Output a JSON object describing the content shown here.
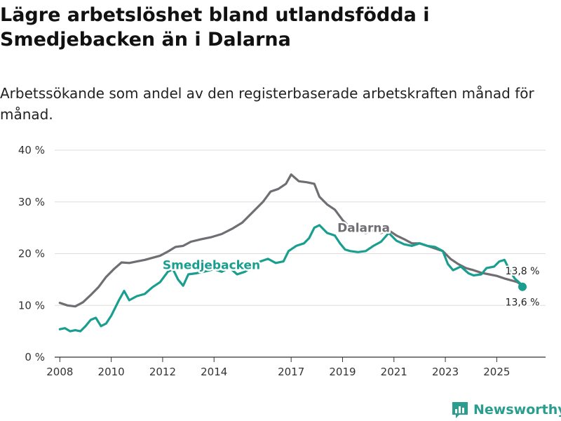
{
  "title": "Lägre arbetslöshet bland utlandsfödda i Smedjebacken än i Dalarna",
  "subtitle": "Arbetssökande som andel av den registerbaserade arbetskraften månad för månad.",
  "brand": {
    "name": "Newsworthy",
    "color": "#2a9d8f"
  },
  "colors": {
    "dalarna": "#6e6e73",
    "smedjebacken": "#1a9e8f",
    "grid": "#dddddd",
    "axis": "#333333"
  },
  "chart_data": {
    "type": "line",
    "x_ticks": [
      "2008",
      "2010",
      "2012",
      "2014",
      "2017",
      "2019",
      "2021",
      "2023",
      "2025"
    ],
    "x_tick_years": [
      2008,
      2010,
      2012,
      2014,
      2017,
      2019,
      2021,
      2023,
      2025
    ],
    "y_ticks": [
      "0 %",
      "10 %",
      "20 %",
      "30 %",
      "40 %"
    ],
    "y_tick_values": [
      0,
      10,
      20,
      30,
      40
    ],
    "ylim": [
      0,
      40
    ],
    "xlim": [
      2007.8,
      2026.9
    ],
    "series": [
      {
        "name": "Dalarna",
        "label": "Dalarna",
        "end_label": "13,8 %",
        "points": [
          [
            2008.0,
            10.5
          ],
          [
            2008.3,
            10.0
          ],
          [
            2008.6,
            9.8
          ],
          [
            2008.9,
            10.6
          ],
          [
            2009.2,
            12.0
          ],
          [
            2009.5,
            13.5
          ],
          [
            2009.8,
            15.5
          ],
          [
            2010.1,
            17.0
          ],
          [
            2010.4,
            18.3
          ],
          [
            2010.7,
            18.2
          ],
          [
            2011.0,
            18.5
          ],
          [
            2011.3,
            18.8
          ],
          [
            2011.6,
            19.2
          ],
          [
            2011.9,
            19.6
          ],
          [
            2012.2,
            20.4
          ],
          [
            2012.5,
            21.3
          ],
          [
            2012.8,
            21.5
          ],
          [
            2013.1,
            22.3
          ],
          [
            2013.5,
            22.8
          ],
          [
            2013.9,
            23.2
          ],
          [
            2014.3,
            23.8
          ],
          [
            2014.7,
            24.8
          ],
          [
            2015.1,
            26.0
          ],
          [
            2015.5,
            28.0
          ],
          [
            2015.9,
            30.0
          ],
          [
            2016.2,
            32.0
          ],
          [
            2016.5,
            32.5
          ],
          [
            2016.8,
            33.5
          ],
          [
            2017.0,
            35.3
          ],
          [
            2017.3,
            34.0
          ],
          [
            2017.6,
            33.8
          ],
          [
            2017.9,
            33.5
          ],
          [
            2018.1,
            31.0
          ],
          [
            2018.4,
            29.5
          ],
          [
            2018.7,
            28.5
          ],
          [
            2019.0,
            26.5
          ],
          [
            2019.3,
            25.0
          ],
          [
            2019.6,
            24.5
          ],
          [
            2019.9,
            24.0
          ],
          [
            2020.2,
            24.5
          ],
          [
            2020.5,
            24.0
          ],
          [
            2020.8,
            24.5
          ],
          [
            2021.1,
            23.5
          ],
          [
            2021.4,
            22.8
          ],
          [
            2021.7,
            22.0
          ],
          [
            2022.0,
            22.0
          ],
          [
            2022.3,
            21.5
          ],
          [
            2022.6,
            21.0
          ],
          [
            2022.9,
            20.5
          ],
          [
            2023.2,
            19.0
          ],
          [
            2023.5,
            18.0
          ],
          [
            2023.8,
            17.2
          ],
          [
            2024.1,
            16.8
          ],
          [
            2024.4,
            16.3
          ],
          [
            2024.7,
            16.0
          ],
          [
            2025.0,
            15.7
          ],
          [
            2025.3,
            15.2
          ],
          [
            2025.6,
            14.8
          ],
          [
            2025.8,
            14.5
          ],
          [
            2026.0,
            13.8
          ]
        ]
      },
      {
        "name": "Smedjebacken",
        "label": "Smedjebacken",
        "end_label": "13,6 %",
        "points": [
          [
            2008.0,
            5.4
          ],
          [
            2008.2,
            5.6
          ],
          [
            2008.4,
            5.0
          ],
          [
            2008.6,
            5.2
          ],
          [
            2008.8,
            5.0
          ],
          [
            2009.0,
            6.0
          ],
          [
            2009.2,
            7.2
          ],
          [
            2009.4,
            7.6
          ],
          [
            2009.6,
            6.0
          ],
          [
            2009.8,
            6.5
          ],
          [
            2010.0,
            8.0
          ],
          [
            2010.3,
            11.0
          ],
          [
            2010.5,
            12.8
          ],
          [
            2010.7,
            11.0
          ],
          [
            2011.0,
            11.8
          ],
          [
            2011.3,
            12.2
          ],
          [
            2011.6,
            13.5
          ],
          [
            2011.9,
            14.5
          ],
          [
            2012.2,
            16.5
          ],
          [
            2012.4,
            17.0
          ],
          [
            2012.6,
            15.0
          ],
          [
            2012.8,
            13.8
          ],
          [
            2013.0,
            16.0
          ],
          [
            2013.3,
            16.2
          ],
          [
            2013.6,
            16.5
          ],
          [
            2014.0,
            17.0
          ],
          [
            2014.3,
            16.5
          ],
          [
            2014.6,
            17.3
          ],
          [
            2014.9,
            16.0
          ],
          [
            2015.2,
            16.5
          ],
          [
            2015.5,
            17.5
          ],
          [
            2015.8,
            18.5
          ],
          [
            2016.1,
            19.0
          ],
          [
            2016.4,
            18.2
          ],
          [
            2016.7,
            18.5
          ],
          [
            2016.9,
            20.5
          ],
          [
            2017.2,
            21.5
          ],
          [
            2017.5,
            22.0
          ],
          [
            2017.7,
            23.0
          ],
          [
            2017.9,
            25.0
          ],
          [
            2018.1,
            25.5
          ],
          [
            2018.4,
            24.0
          ],
          [
            2018.7,
            23.5
          ],
          [
            2018.9,
            22.0
          ],
          [
            2019.1,
            20.8
          ],
          [
            2019.3,
            20.5
          ],
          [
            2019.6,
            20.3
          ],
          [
            2019.9,
            20.5
          ],
          [
            2020.2,
            21.5
          ],
          [
            2020.5,
            22.3
          ],
          [
            2020.8,
            24.0
          ],
          [
            2021.1,
            22.5
          ],
          [
            2021.4,
            21.8
          ],
          [
            2021.7,
            21.5
          ],
          [
            2022.0,
            22.0
          ],
          [
            2022.3,
            21.5
          ],
          [
            2022.6,
            21.3
          ],
          [
            2022.9,
            20.5
          ],
          [
            2023.1,
            18.0
          ],
          [
            2023.3,
            16.8
          ],
          [
            2023.6,
            17.5
          ],
          [
            2023.9,
            16.2
          ],
          [
            2024.1,
            15.8
          ],
          [
            2024.4,
            16.0
          ],
          [
            2024.6,
            17.2
          ],
          [
            2024.9,
            17.5
          ],
          [
            2025.1,
            18.5
          ],
          [
            2025.3,
            18.8
          ],
          [
            2025.5,
            16.8
          ],
          [
            2025.7,
            15.2
          ],
          [
            2025.9,
            14.3
          ],
          [
            2026.0,
            13.6
          ]
        ]
      }
    ]
  }
}
